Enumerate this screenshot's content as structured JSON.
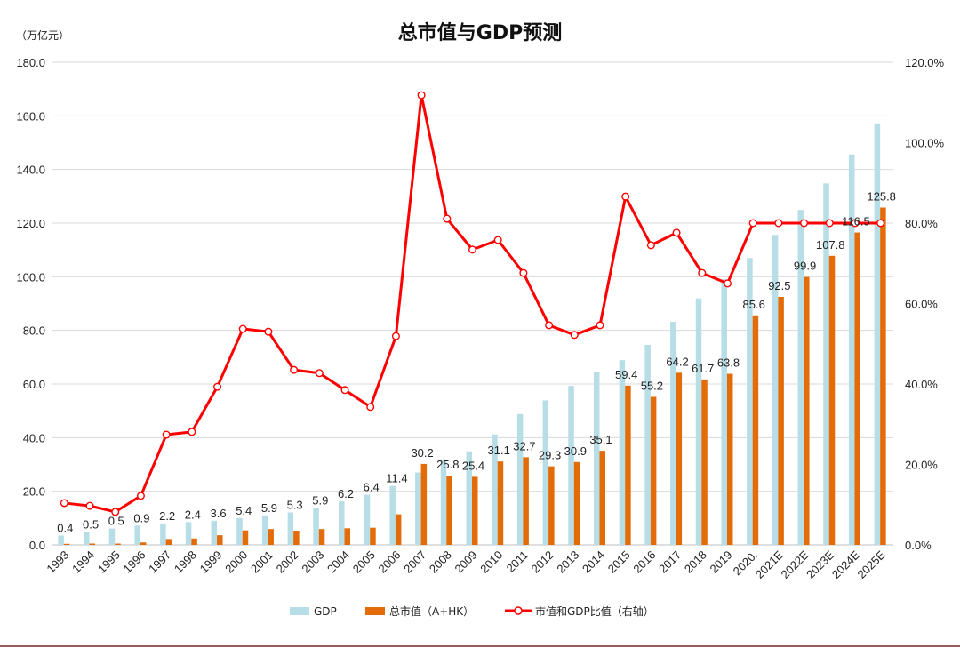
{
  "chart_data": {
    "type": "bar+line",
    "title": "总市值与GDP预测",
    "unit_label": "（万亿元）",
    "categories": [
      "1993",
      "1994",
      "1995",
      "1996",
      "1997",
      "1998",
      "1999",
      "2000",
      "2001",
      "2002",
      "2003",
      "2004",
      "2005",
      "2006",
      "2007",
      "2008",
      "2009",
      "2010",
      "2011",
      "2012",
      "2013",
      "2014",
      "2015",
      "2016",
      "2017",
      "2018",
      "2019",
      "2020.",
      "2021E",
      "2022E",
      "2023E",
      "2024E",
      "2025E"
    ],
    "y_left": {
      "range": [
        0,
        180
      ],
      "ticks": [
        "0.0",
        "20.0",
        "40.0",
        "60.0",
        "80.0",
        "100.0",
        "120.0",
        "140.0",
        "160.0",
        "180.0"
      ]
    },
    "y_right": {
      "range": [
        0,
        120
      ],
      "ticks": [
        "0.0%",
        "20.0%",
        "40.0%",
        "60.0%",
        "80.0%",
        "100.0%",
        "120.0%"
      ]
    },
    "grid": true,
    "legend_position": "bottom",
    "series": [
      {
        "name": "GDP",
        "type": "bar",
        "axis": "left",
        "color": "#b7dde6",
        "values": [
          3.5,
          4.8,
          6.1,
          7.2,
          8.0,
          8.5,
          9.0,
          10.0,
          11.0,
          12.1,
          13.7,
          16.2,
          18.7,
          22.0,
          27.0,
          31.9,
          34.9,
          41.2,
          48.8,
          53.9,
          59.3,
          64.4,
          68.9,
          74.6,
          83.2,
          91.9,
          99.1,
          107.0,
          115.6,
          124.9,
          134.8,
          145.6,
          157.2
        ]
      },
      {
        "name": "总市值（A+HK）",
        "type": "bar",
        "axis": "left",
        "color": "#e36c09",
        "values": [
          0.4,
          0.5,
          0.5,
          0.9,
          2.2,
          2.4,
          3.6,
          5.4,
          5.9,
          5.3,
          5.9,
          6.2,
          6.4,
          11.4,
          30.2,
          25.8,
          25.4,
          31.1,
          32.7,
          29.3,
          30.9,
          35.1,
          59.4,
          55.2,
          64.2,
          61.7,
          63.8,
          85.6,
          92.5,
          99.9,
          107.8,
          116.5,
          125.8
        ],
        "data_labels": [
          "0.4",
          "0.5",
          "0.5",
          "0.9",
          "2.2",
          "2.4",
          "3.6",
          "5.4",
          "5.9",
          "5.3",
          "5.9",
          "6.2",
          "6.4",
          "11.4",
          "30.2",
          "25.8",
          "25.4",
          "31.1",
          "32.7",
          "29.3",
          "30.9",
          "35.1",
          "59.4",
          "55.2",
          "64.2",
          "61.7",
          "63.8",
          "85.6",
          "92.5",
          "99.9",
          "107.8",
          "116.5",
          "125.8"
        ]
      },
      {
        "name": "市值和GDP比值（右轴）",
        "type": "line",
        "axis": "right",
        "unit": "%",
        "color": "#ff0000",
        "values": [
          10.4,
          9.7,
          8.2,
          12.2,
          27.4,
          28.1,
          39.3,
          53.7,
          53.0,
          43.5,
          42.7,
          38.5,
          34.3,
          51.9,
          111.8,
          81.1,
          73.4,
          75.8,
          67.6,
          54.6,
          52.2,
          54.6,
          86.6,
          74.5,
          77.6,
          67.6,
          65.0,
          80.0,
          80.0,
          80.0,
          80.0,
          80.0,
          80.0
        ]
      }
    ]
  }
}
